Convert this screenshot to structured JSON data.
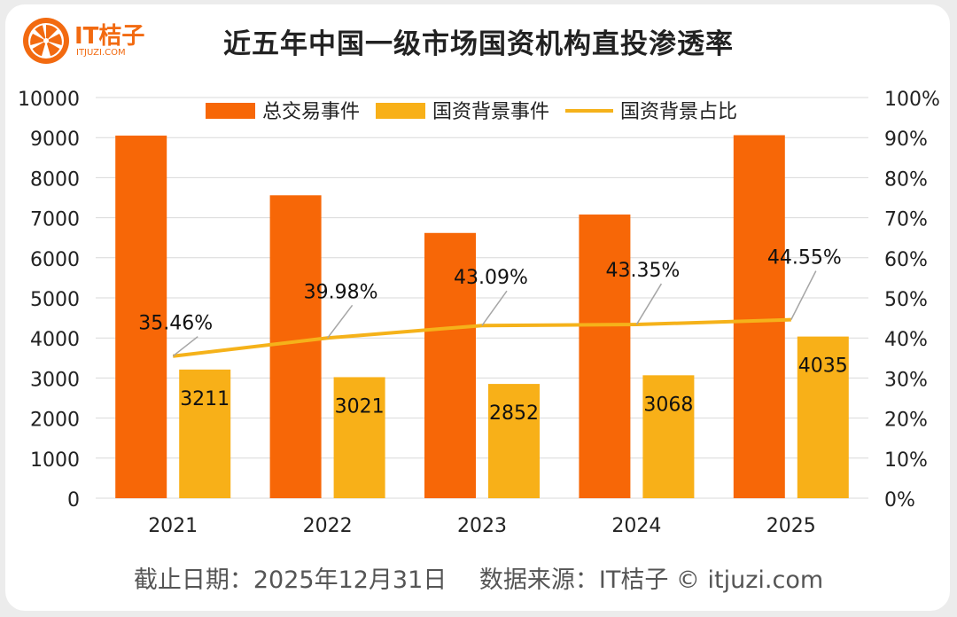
{
  "logo": {
    "name": "IT桔子",
    "url": "ITJUZI.COM"
  },
  "footer": {
    "date_label": "截止日期：2025年12月31日",
    "source_label": "数据来源：IT桔子 © itjuzi.com"
  },
  "colors": {
    "total": "#f76707",
    "state": "#f8b018",
    "ratio": "#f5b21a",
    "axis": "#d9d9d9"
  },
  "chart_data": {
    "type": "bar",
    "title": "近五年中国一级市场国资机构直投渗透率",
    "categories": [
      "2021",
      "2022",
      "2023",
      "2024",
      "2025"
    ],
    "series": [
      {
        "name": "总交易事件",
        "kind": "bar",
        "axis": "left",
        "values": [
          9050,
          7560,
          6620,
          7080,
          9060
        ]
      },
      {
        "name": "国资背景事件",
        "kind": "bar",
        "axis": "left",
        "values": [
          3211,
          3021,
          2852,
          3068,
          4035
        ],
        "labels": [
          "3211",
          "3021",
          "2852",
          "3068",
          "4035"
        ]
      },
      {
        "name": "国资背景占比",
        "kind": "line",
        "axis": "right",
        "values": [
          35.46,
          39.98,
          43.09,
          43.35,
          44.55
        ],
        "labels": [
          "35.46%",
          "39.98%",
          "43.09%",
          "43.35%",
          "44.55%"
        ]
      }
    ],
    "y_left": {
      "min": 0,
      "max": 10000,
      "step": 1000,
      "ticks": [
        "0",
        "1000",
        "2000",
        "3000",
        "4000",
        "5000",
        "6000",
        "7000",
        "8000",
        "9000",
        "10000"
      ]
    },
    "y_right": {
      "min": 0,
      "max": 100,
      "step": 10,
      "ticks": [
        "0%",
        "10%",
        "20%",
        "30%",
        "40%",
        "50%",
        "60%",
        "70%",
        "80%",
        "90%",
        "100%"
      ]
    },
    "legend_position": "top",
    "grid": true
  }
}
